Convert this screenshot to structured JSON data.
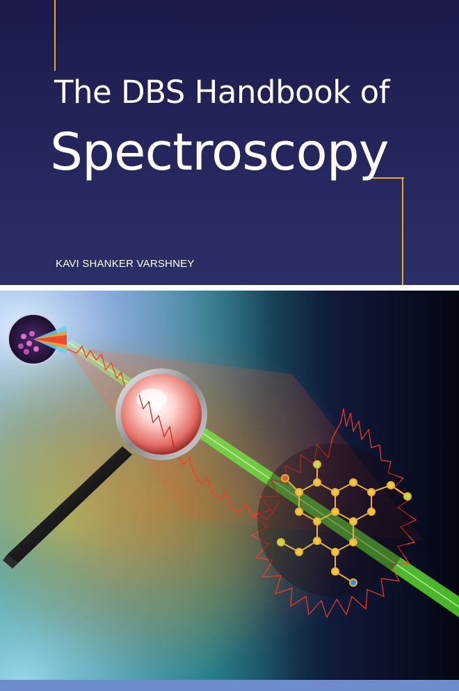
{
  "book": {
    "title_line1": "The DBS Handbook of",
    "title_line2": "Spectroscopy",
    "author": "KAVI SHANKER VARSHNEY"
  },
  "colors": {
    "background": "#26275e",
    "accent": "#e8a92c",
    "bottom_band": "#6d8ccb"
  },
  "illustration": {
    "icons": [
      "magnifying-glass-icon",
      "laser-beam-icon",
      "molecule-icon",
      "spectrum-wave-icon"
    ]
  }
}
